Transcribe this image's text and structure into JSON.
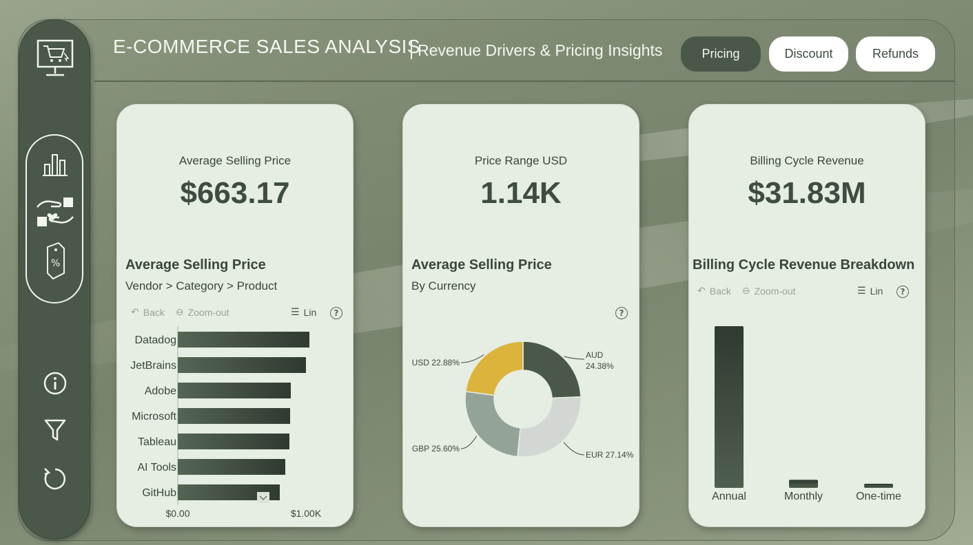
{
  "header": {
    "title": "E-COMMERCE SALES ANALYSIS",
    "subtitle": "Revenue Drivers & Pricing Insights"
  },
  "tabs": [
    {
      "label": "Pricing",
      "active": true
    },
    {
      "label": "Discount",
      "active": false
    },
    {
      "label": "Refunds",
      "active": false
    }
  ],
  "sidebar": {
    "icons": [
      "monitor-cart-icon",
      "bar-chart-icon",
      "hands-heart-icon",
      "price-tag-icon",
      "info-icon",
      "filter-icon",
      "reset-icon"
    ]
  },
  "cards": [
    {
      "kpi_label": "Average Selling Price",
      "kpi_value": "$663.17",
      "chart_title": "Average Selling Price",
      "chart_subtitle": "Vendor > Category > Product",
      "toolbar": {
        "back": "Back",
        "zoom": "Zoom-out",
        "lin": "Lin",
        "help": "?"
      }
    },
    {
      "kpi_label": "Price Range USD",
      "kpi_value": "1.14K",
      "chart_title": "Average Selling Price",
      "chart_subtitle": "By Currency",
      "toolbar": {
        "help": "?"
      }
    },
    {
      "kpi_label": "Billing Cycle Revenue",
      "kpi_value": "$31.83M",
      "chart_title": "Billing Cycle Revenue Breakdown",
      "toolbar": {
        "back": "Back",
        "zoom": "Zoom-out",
        "lin": "Lin",
        "help": "?"
      }
    }
  ],
  "chart_data": [
    {
      "type": "bar",
      "orientation": "horizontal",
      "categories": [
        "Datadog",
        "JetBrains",
        "Adobe",
        "Microsoft",
        "Tableau",
        "AI Tools",
        "GitHub"
      ],
      "values": [
        955,
        930,
        820,
        815,
        810,
        780,
        740
      ],
      "xlim": [
        0,
        1000
      ],
      "xticks": [
        "$0.00",
        "$1.00K"
      ]
    },
    {
      "type": "pie",
      "donut": true,
      "slices": [
        {
          "label": "AUD",
          "value": 24.38,
          "display": "24.38%",
          "color": "#4a5849"
        },
        {
          "label": "EUR",
          "value": 27.14,
          "display": "EUR 27.14%",
          "color": "#d3d7d3"
        },
        {
          "label": "GBP",
          "value": 25.6,
          "display": "GBP 25.60%",
          "color": "#93a398"
        },
        {
          "label": "USD",
          "value": 22.88,
          "display": "USD 22.88%",
          "color": "#dcb33b"
        }
      ]
    },
    {
      "type": "bar",
      "orientation": "vertical",
      "categories": [
        "Annual",
        "Monthly",
        "One-time"
      ],
      "values": [
        30.0,
        1.5,
        0.33
      ]
    }
  ],
  "colors": {
    "bg": "#87927a",
    "sidebar": "#4a5849",
    "card": "#e6ede2",
    "bar_dark": "#2f3a31",
    "bar_light": "#556654",
    "accent": "#dcb33b"
  }
}
